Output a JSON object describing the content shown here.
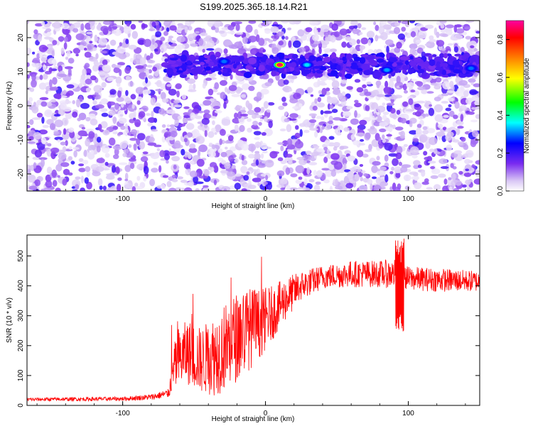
{
  "title": "S199.2025.365.18.14.R21",
  "chart_data": [
    {
      "type": "heatmap",
      "xlabel": "Height of straight line (km)",
      "ylabel": "Frequency (Hz)",
      "xlim": [
        -167,
        150
      ],
      "ylim": [
        -25,
        25
      ],
      "x_ticks": [
        -100,
        0,
        100
      ],
      "x_tick_labels": [
        "-100",
        "0",
        "100"
      ],
      "y_ticks": [
        -20,
        -10,
        0,
        10,
        20
      ],
      "y_tick_labels": [
        "-20",
        "-10",
        "0",
        "10",
        "20"
      ],
      "colorbar": {
        "label": "Normalized spectral amplitude",
        "range": [
          0,
          0.9
        ],
        "ticks": [
          0.0,
          0.2,
          0.4,
          0.6,
          0.8
        ],
        "tick_labels": [
          "0.0",
          "0.2",
          "0.4",
          "0.6",
          "0.8"
        ]
      },
      "band": {
        "frequency_hz": 12,
        "x_range": [
          -70,
          150
        ]
      },
      "hotspots": [
        {
          "x": 10,
          "y": 12,
          "amplitude": 0.88
        },
        {
          "x": 29,
          "y": 12,
          "amplitude": 0.35
        },
        {
          "x": 85,
          "y": 10.5,
          "amplitude": 0.32
        },
        {
          "x": -29,
          "y": 13,
          "amplitude": 0.3
        },
        {
          "x": 144,
          "y": 11,
          "amplitude": 0.3
        }
      ],
      "gaps": [
        {
          "x_range": [
            4,
            10
          ],
          "y_range": [
            -25,
            8
          ]
        }
      ],
      "colormap": [
        "#ffffff",
        "#d9c6f5",
        "#7a2cf0",
        "#0000ff",
        "#00ffff",
        "#00ff00",
        "#ffff00",
        "#ff8000",
        "#ff0000",
        "#ff00a0"
      ]
    },
    {
      "type": "line",
      "xlabel": "Height of straight line (km)",
      "ylabel": "SNR (10 * v/v)",
      "xlim": [
        -167,
        150
      ],
      "ylim": [
        0,
        570
      ],
      "x_ticks": [
        -100,
        0,
        100
      ],
      "x_tick_labels": [
        "-100",
        "0",
        "100"
      ],
      "y_ticks": [
        0,
        100,
        200,
        300,
        400,
        500
      ],
      "y_tick_labels": [
        "0",
        "100",
        "200",
        "300",
        "400",
        "500"
      ],
      "line_color": "#ff0000",
      "series_profile": [
        {
          "x": -167,
          "base": 20,
          "noise": 6
        },
        {
          "x": -100,
          "base": 22,
          "noise": 7
        },
        {
          "x": -80,
          "base": 28,
          "noise": 10
        },
        {
          "x": -68,
          "base": 40,
          "noise": 15
        },
        {
          "x": -63,
          "base": 140,
          "noise": 90
        },
        {
          "x": -55,
          "base": 180,
          "noise": 110
        },
        {
          "x": -45,
          "base": 150,
          "noise": 110
        },
        {
          "x": -35,
          "base": 170,
          "noise": 140
        },
        {
          "x": -25,
          "base": 210,
          "noise": 150
        },
        {
          "x": -15,
          "base": 250,
          "noise": 150
        },
        {
          "x": -5,
          "base": 270,
          "noise": 120
        },
        {
          "x": 5,
          "base": 310,
          "noise": 90
        },
        {
          "x": 15,
          "base": 360,
          "noise": 70
        },
        {
          "x": 25,
          "base": 400,
          "noise": 50
        },
        {
          "x": 40,
          "base": 430,
          "noise": 40
        },
        {
          "x": 60,
          "base": 440,
          "noise": 45
        },
        {
          "x": 80,
          "base": 440,
          "noise": 45
        },
        {
          "x": 92,
          "base": 440,
          "noise": 50
        },
        {
          "x": 100,
          "base": 425,
          "noise": 40
        },
        {
          "x": 120,
          "base": 420,
          "noise": 40
        },
        {
          "x": 150,
          "base": 415,
          "noise": 35
        }
      ],
      "events": [
        {
          "x": 94,
          "min": 245,
          "max": 565
        }
      ]
    }
  ]
}
